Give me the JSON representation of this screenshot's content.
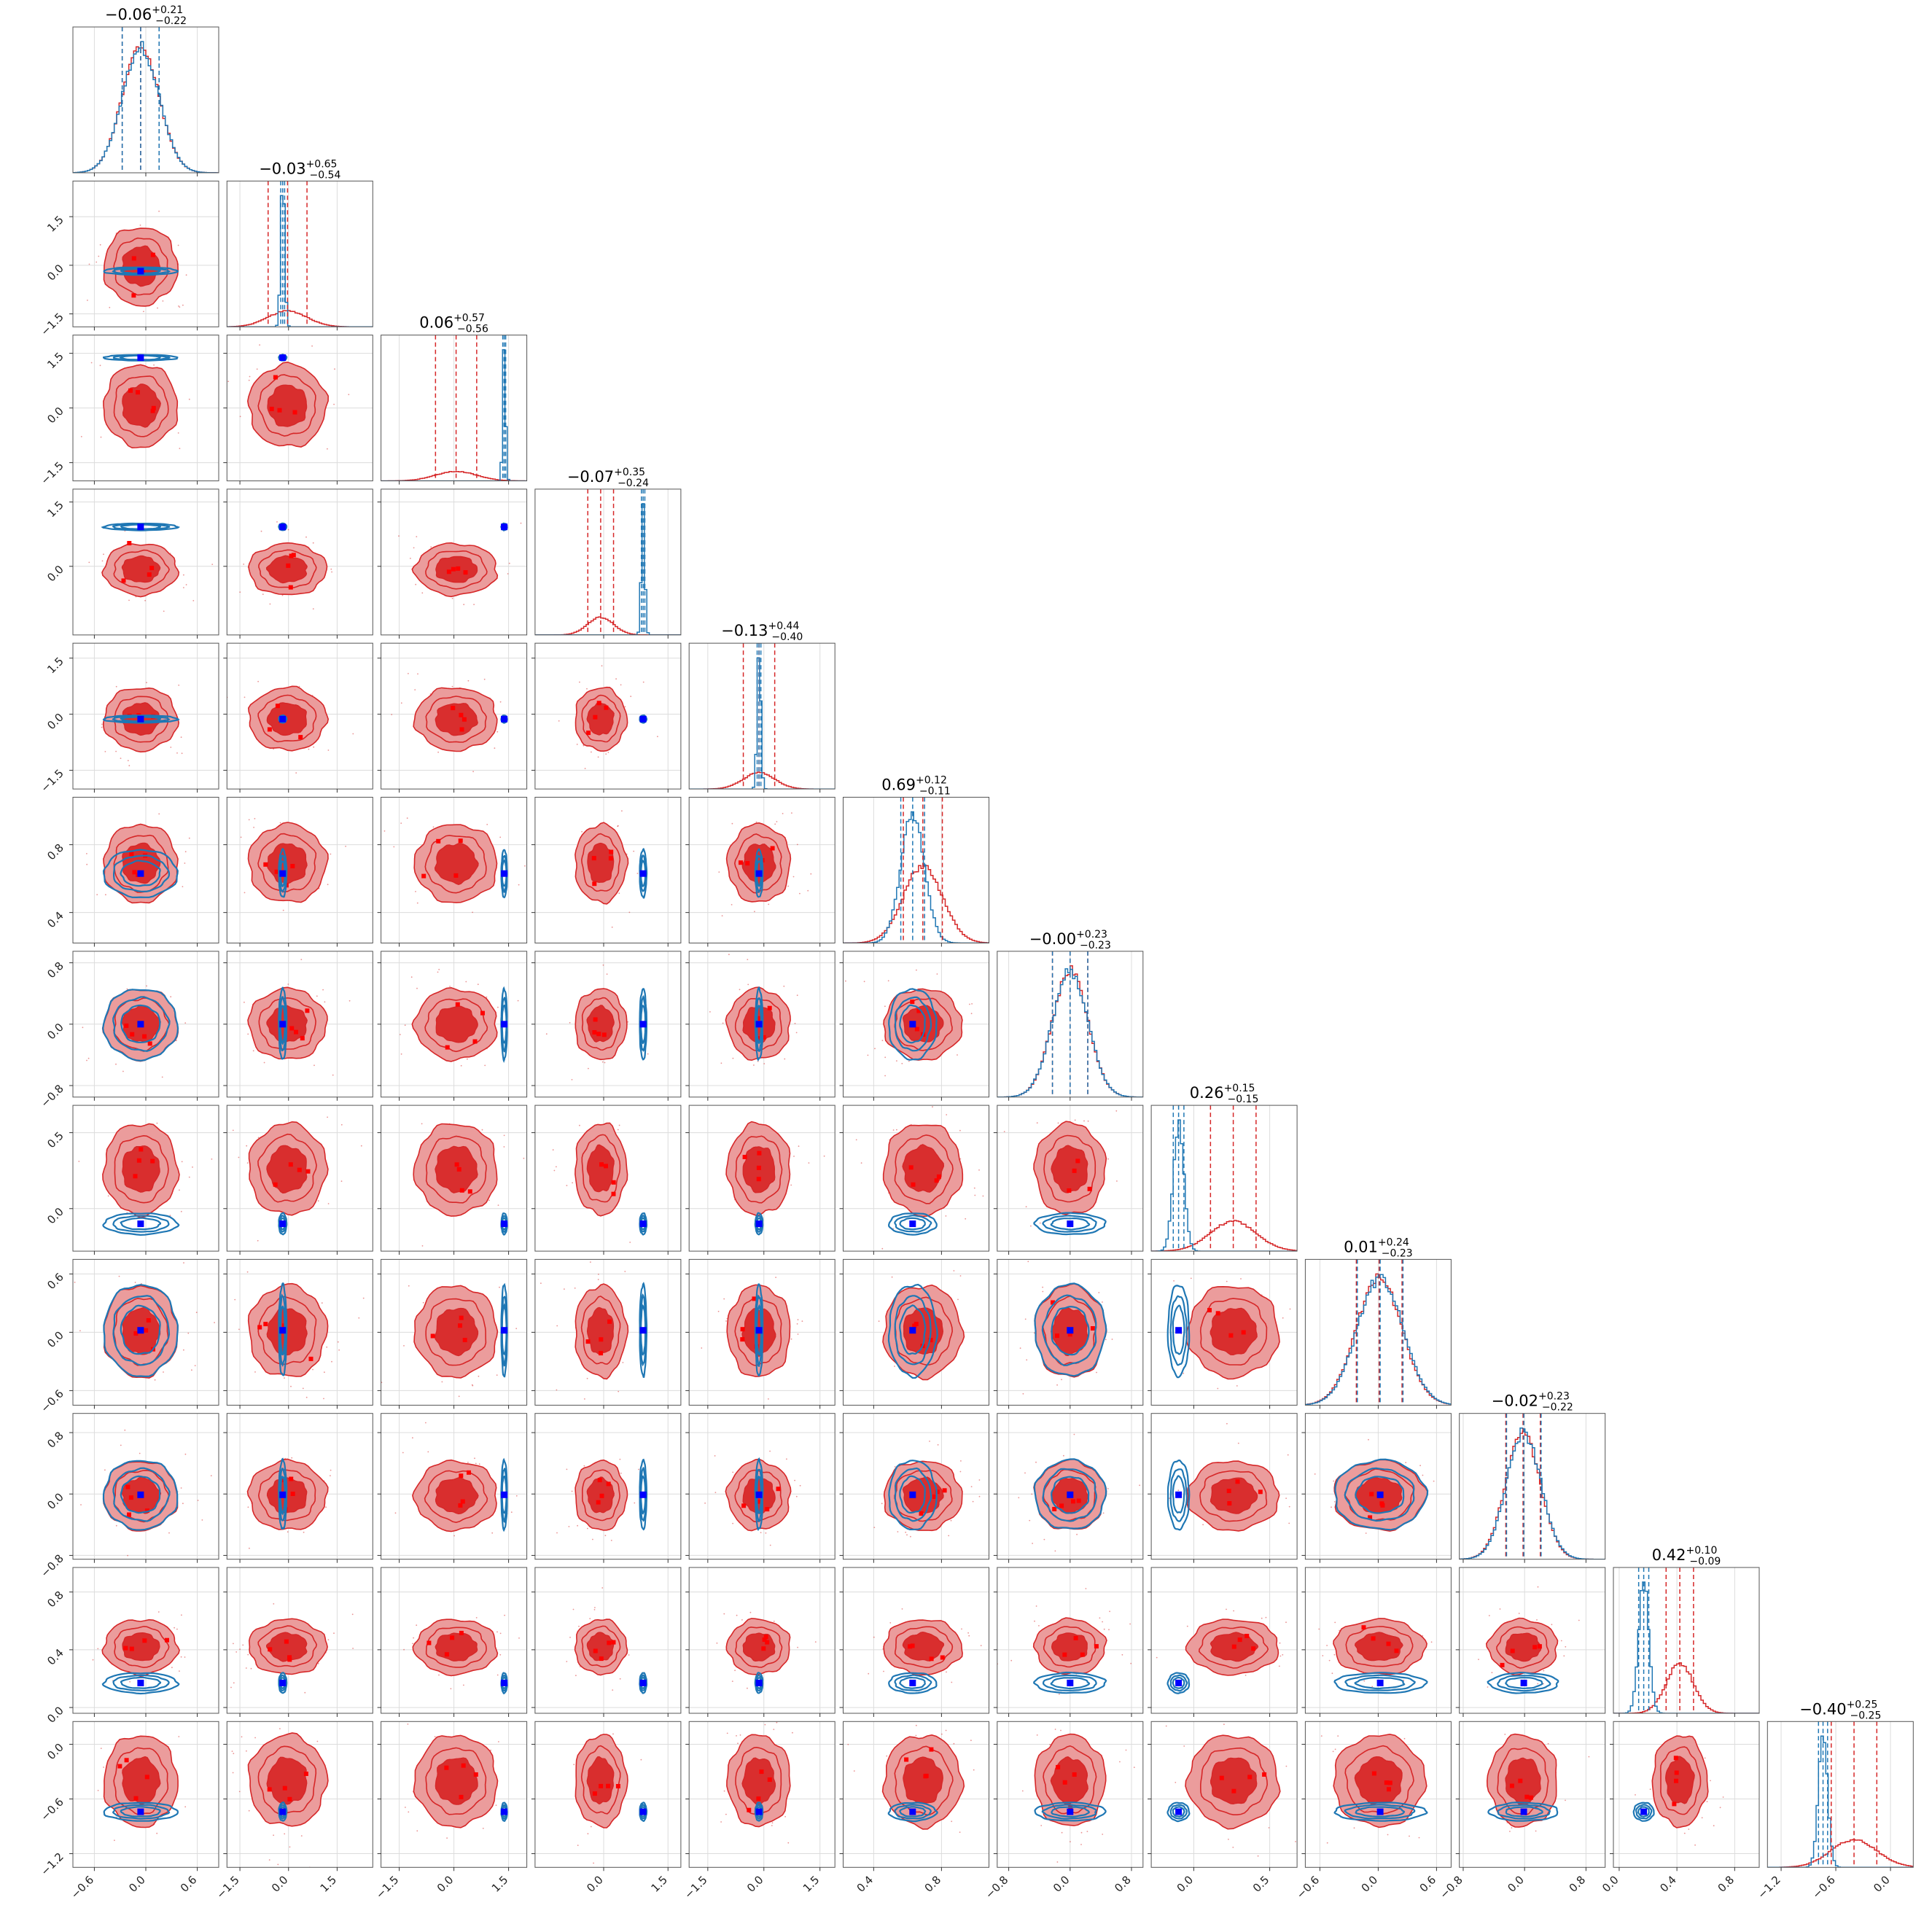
{
  "chart_data": {
    "type": "corner",
    "n_params": 12,
    "titles": [
      {
        "median": "−0.06",
        "plus": "+0.21",
        "minus": "−0.22"
      },
      {
        "median": "−0.03",
        "plus": "+0.65",
        "minus": "−0.54"
      },
      {
        "median": "0.06",
        "plus": "+0.57",
        "minus": "−0.56"
      },
      {
        "median": "−0.07",
        "plus": "+0.35",
        "minus": "−0.24"
      },
      {
        "median": "−0.13",
        "plus": "+0.44",
        "minus": "−0.40"
      },
      {
        "median": "0.69",
        "plus": "+0.12",
        "minus": "−0.11"
      },
      {
        "median": "−0.00",
        "plus": "+0.23",
        "minus": "−0.23"
      },
      {
        "median": "0.26",
        "plus": "+0.15",
        "minus": "−0.15"
      },
      {
        "median": "0.01",
        "plus": "+0.24",
        "minus": "−0.23"
      },
      {
        "median": "−0.02",
        "plus": "+0.23",
        "minus": "−0.22"
      },
      {
        "median": "0.42",
        "plus": "+0.10",
        "minus": "−0.09"
      },
      {
        "median": "−0.40",
        "plus": "+0.25",
        "minus": "−0.25"
      }
    ],
    "ranges": [
      [
        -0.85,
        0.85
      ],
      [
        -1.9,
        2.6
      ],
      [
        -2.0,
        2.0
      ],
      [
        -1.6,
        1.8
      ],
      [
        -2.0,
        1.9
      ],
      [
        0.22,
        1.08
      ],
      [
        -0.95,
        0.95
      ],
      [
        -0.28,
        0.68
      ],
      [
        -0.75,
        0.75
      ],
      [
        -0.85,
        1.05
      ],
      [
        -0.04,
        0.97
      ],
      [
        -1.35,
        0.25
      ]
    ],
    "ticks": [
      [
        "−0.6",
        "0.0",
        "0.6"
      ],
      [
        "−1.5",
        "0.0",
        "1.5"
      ],
      [
        "−1.5",
        "0.0",
        "1.5"
      ],
      [
        "0.0",
        "1.5"
      ],
      [
        "−1.5",
        "0.0",
        "1.5"
      ],
      [
        "0.4",
        "0.8"
      ],
      [
        "−0.8",
        "0.0",
        "0.8"
      ],
      [
        "0.0",
        "0.5"
      ],
      [
        "−0.6",
        "0.0",
        "0.6"
      ],
      [
        "−0.8",
        "0.0",
        "0.8"
      ],
      [
        "0.0",
        "0.4",
        "0.8"
      ],
      [
        "−1.2",
        "−0.6",
        "0.0"
      ]
    ],
    "tick_values": [
      [
        -0.6,
        0.0,
        0.6
      ],
      [
        -1.5,
        0.0,
        1.5
      ],
      [
        -1.5,
        0.0,
        1.5
      ],
      [
        0.0,
        1.5
      ],
      [
        -1.5,
        0.0,
        1.5
      ],
      [
        0.4,
        0.8
      ],
      [
        -0.8,
        0.0,
        0.8
      ],
      [
        0.0,
        0.5
      ],
      [
        -0.6,
        0.0,
        0.6
      ],
      [
        -0.8,
        0.0,
        0.8
      ],
      [
        0.0,
        0.4,
        0.8
      ],
      [
        -1.2,
        -0.6,
        0.0
      ]
    ],
    "red_posterior": {
      "color": "#d62728",
      "median": [
        -0.06,
        -0.03,
        0.06,
        -0.07,
        -0.13,
        0.69,
        0.0,
        0.26,
        0.01,
        -0.02,
        0.42,
        -0.4
      ],
      "sigma": [
        0.215,
        0.6,
        0.565,
        0.3,
        0.42,
        0.115,
        0.23,
        0.15,
        0.235,
        0.225,
        0.095,
        0.25
      ]
    },
    "blue_posterior": {
      "color": "#1f77b4",
      "median": [
        -0.06,
        -0.18,
        1.38,
        0.92,
        -0.13,
        0.63,
        0.0,
        -0.1,
        0.02,
        -0.01,
        0.17,
        -0.74
      ],
      "sigma": [
        0.215,
        0.06,
        0.04,
        0.04,
        0.05,
        0.07,
        0.23,
        0.035,
        0.235,
        0.225,
        0.035,
        0.05
      ],
      "tails": [
        0,
        0,
        0,
        0,
        0,
        0,
        0,
        0.26,
        0,
        0,
        0.09,
        0.06
      ]
    },
    "truth_color": "#0000ff",
    "grid": true,
    "legend": "none"
  }
}
